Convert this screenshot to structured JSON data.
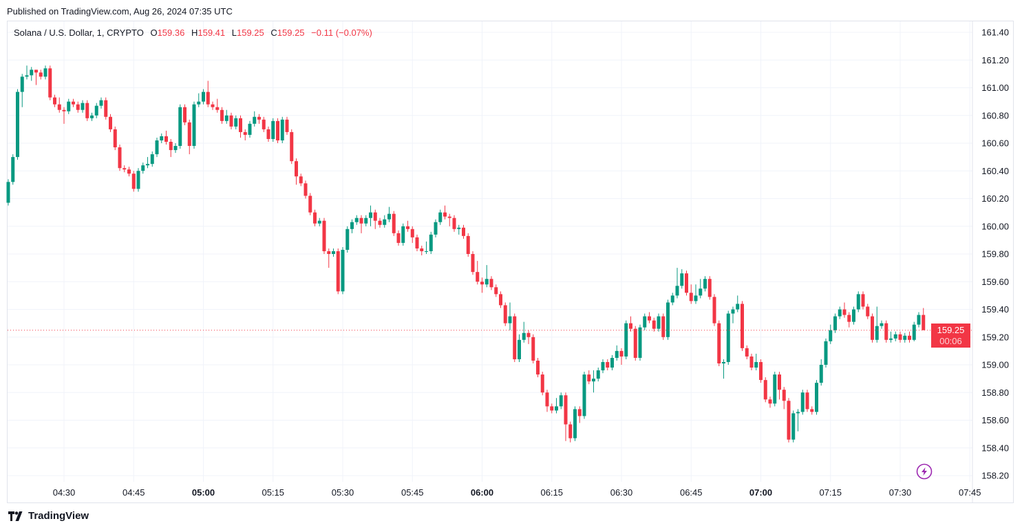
{
  "header": {
    "published": "Published on TradingView.com, Aug 26, 2024 07:35 UTC"
  },
  "legend": {
    "symbol": "Solana / U.S. Dollar, 1, CRYPTO",
    "o_label": "O",
    "o": "159.36",
    "h_label": "H",
    "h": "159.41",
    "l_label": "L",
    "l": "159.25",
    "c_label": "C",
    "c": "159.25",
    "change": "−0.11 (−0.07%)"
  },
  "last_price": {
    "value": "159.25",
    "countdown": "00:06"
  },
  "footer": {
    "brand": "TradingView"
  },
  "icons": {
    "footer_logo": "tradingview-logo-icon",
    "flash": "lightning-icon"
  },
  "colors": {
    "up": "#089981",
    "down": "#f23645",
    "grid": "#f0f3fa",
    "flash": "#9c27b0"
  },
  "chart_data": {
    "type": "candlestick",
    "interval_minutes": 1,
    "x_start": "04:18",
    "x_ticks": [
      {
        "label": "04:30",
        "bold": false
      },
      {
        "label": "04:45",
        "bold": false
      },
      {
        "label": "05:00",
        "bold": true
      },
      {
        "label": "05:15",
        "bold": false
      },
      {
        "label": "05:30",
        "bold": false
      },
      {
        "label": "05:45",
        "bold": false
      },
      {
        "label": "06:00",
        "bold": true
      },
      {
        "label": "06:15",
        "bold": false
      },
      {
        "label": "06:30",
        "bold": false
      },
      {
        "label": "06:45",
        "bold": false
      },
      {
        "label": "07:00",
        "bold": true
      },
      {
        "label": "07:15",
        "bold": false
      },
      {
        "label": "07:30",
        "bold": false
      },
      {
        "label": "07:45",
        "bold": false
      }
    ],
    "y_ticks": [
      "161.40",
      "161.20",
      "161.00",
      "160.80",
      "160.60",
      "160.40",
      "160.20",
      "160.00",
      "159.80",
      "159.60",
      "159.40",
      "159.20",
      "159.00",
      "158.80",
      "158.60",
      "158.40",
      "158.20"
    ],
    "ylim": [
      158.15,
      161.47
    ],
    "grid": true,
    "ohlc": [
      [
        160.17,
        160.34,
        160.15,
        160.32
      ],
      [
        160.32,
        160.52,
        160.3,
        160.5
      ],
      [
        160.5,
        160.99,
        160.48,
        160.97
      ],
      [
        160.97,
        161.1,
        160.86,
        161.08
      ],
      [
        161.08,
        161.16,
        161.06,
        161.09
      ],
      [
        161.09,
        161.15,
        161.05,
        161.13
      ],
      [
        161.13,
        161.13,
        161.02,
        161.11
      ],
      [
        161.11,
        161.13,
        161.06,
        161.08
      ],
      [
        161.08,
        161.16,
        161.06,
        161.14
      ],
      [
        161.14,
        161.16,
        160.91,
        160.93
      ],
      [
        160.93,
        160.95,
        160.86,
        160.88
      ],
      [
        160.88,
        160.93,
        160.82,
        160.84
      ],
      [
        160.84,
        160.86,
        160.74,
        160.83
      ],
      [
        160.83,
        160.92,
        160.81,
        160.9
      ],
      [
        160.9,
        160.92,
        160.86,
        160.88
      ],
      [
        160.88,
        160.9,
        160.82,
        160.84
      ],
      [
        160.84,
        160.91,
        160.82,
        160.89
      ],
      [
        160.89,
        160.91,
        160.76,
        160.78
      ],
      [
        160.78,
        160.82,
        160.76,
        160.8
      ],
      [
        160.8,
        160.89,
        160.78,
        160.87
      ],
      [
        160.87,
        160.93,
        160.85,
        160.91
      ],
      [
        160.91,
        160.93,
        160.77,
        160.79
      ],
      [
        160.79,
        160.81,
        160.68,
        160.7
      ],
      [
        160.7,
        160.72,
        160.55,
        160.57
      ],
      [
        160.57,
        160.59,
        160.4,
        160.42
      ],
      [
        160.42,
        160.44,
        160.39,
        160.41
      ],
      [
        160.41,
        160.43,
        160.36,
        160.38
      ],
      [
        160.38,
        160.4,
        160.25,
        160.27
      ],
      [
        160.27,
        160.42,
        160.25,
        160.4
      ],
      [
        160.4,
        160.46,
        160.38,
        160.44
      ],
      [
        160.44,
        160.5,
        160.42,
        160.45
      ],
      [
        160.45,
        160.54,
        160.43,
        160.52
      ],
      [
        160.52,
        160.64,
        160.5,
        160.62
      ],
      [
        160.62,
        160.67,
        160.6,
        160.65
      ],
      [
        160.65,
        160.69,
        160.59,
        160.61
      ],
      [
        160.61,
        160.63,
        160.5,
        160.55
      ],
      [
        160.55,
        160.6,
        160.53,
        160.58
      ],
      [
        160.58,
        160.88,
        160.56,
        160.86
      ],
      [
        160.86,
        160.88,
        160.73,
        160.75
      ],
      [
        160.75,
        160.77,
        160.52,
        160.58
      ],
      [
        160.58,
        160.9,
        160.56,
        160.88
      ],
      [
        160.88,
        160.96,
        160.86,
        160.9
      ],
      [
        160.9,
        160.99,
        160.88,
        160.97
      ],
      [
        160.97,
        161.05,
        160.86,
        160.88
      ],
      [
        160.88,
        160.9,
        160.84,
        160.86
      ],
      [
        160.86,
        160.92,
        160.82,
        160.84
      ],
      [
        160.84,
        160.86,
        160.74,
        160.76
      ],
      [
        160.76,
        160.84,
        160.74,
        160.8
      ],
      [
        160.8,
        160.82,
        160.7,
        160.72
      ],
      [
        160.72,
        160.8,
        160.7,
        160.78
      ],
      [
        160.78,
        160.8,
        160.64,
        160.68
      ],
      [
        160.68,
        160.7,
        160.62,
        160.66
      ],
      [
        160.66,
        160.76,
        160.64,
        160.74
      ],
      [
        160.74,
        160.83,
        160.72,
        160.79
      ],
      [
        160.79,
        160.81,
        160.74,
        160.77
      ],
      [
        160.77,
        160.79,
        160.68,
        160.7
      ],
      [
        160.7,
        160.72,
        160.61,
        160.63
      ],
      [
        160.63,
        160.78,
        160.61,
        160.76
      ],
      [
        160.76,
        160.78,
        160.6,
        160.62
      ],
      [
        160.62,
        160.79,
        160.6,
        160.77
      ],
      [
        160.77,
        160.79,
        160.66,
        160.68
      ],
      [
        160.68,
        160.7,
        160.45,
        160.47
      ],
      [
        160.47,
        160.49,
        160.3,
        160.36
      ],
      [
        160.36,
        160.38,
        160.29,
        160.31
      ],
      [
        160.31,
        160.33,
        160.2,
        160.22
      ],
      [
        160.22,
        160.24,
        160.08,
        160.1
      ],
      [
        160.1,
        160.12,
        160.0,
        160.02
      ],
      [
        160.02,
        160.06,
        160.0,
        160.04
      ],
      [
        160.04,
        160.06,
        159.8,
        159.82
      ],
      [
        159.82,
        159.84,
        159.7,
        159.8
      ],
      [
        159.8,
        159.84,
        159.78,
        159.82
      ],
      [
        159.82,
        159.84,
        159.51,
        159.53
      ],
      [
        159.53,
        159.85,
        159.51,
        159.83
      ],
      [
        159.83,
        160.0,
        159.81,
        159.98
      ],
      [
        159.98,
        160.05,
        159.95,
        160.03
      ],
      [
        160.03,
        160.08,
        160.01,
        160.06
      ],
      [
        160.06,
        160.08,
        159.95,
        160.02
      ],
      [
        160.02,
        160.08,
        160.0,
        160.06
      ],
      [
        160.06,
        160.15,
        160.0,
        160.1
      ],
      [
        160.1,
        160.12,
        159.98,
        160.04
      ],
      [
        160.04,
        160.06,
        159.99,
        160.01
      ],
      [
        160.01,
        160.08,
        159.99,
        160.05
      ],
      [
        160.05,
        160.14,
        160.03,
        160.09
      ],
      [
        160.09,
        160.11,
        159.93,
        159.95
      ],
      [
        159.95,
        159.97,
        159.86,
        159.88
      ],
      [
        159.88,
        160.02,
        159.86,
        160.0
      ],
      [
        160.0,
        160.04,
        159.96,
        159.98
      ],
      [
        159.98,
        160.0,
        159.88,
        159.92
      ],
      [
        159.92,
        159.94,
        159.82,
        159.84
      ],
      [
        159.84,
        159.86,
        159.79,
        159.82
      ],
      [
        159.82,
        159.89,
        159.8,
        159.82
      ],
      [
        159.82,
        159.96,
        159.8,
        159.94
      ],
      [
        159.94,
        160.05,
        159.92,
        160.03
      ],
      [
        160.03,
        160.12,
        160.01,
        160.1
      ],
      [
        160.1,
        160.15,
        160.05,
        160.07
      ],
      [
        160.07,
        160.09,
        160.0,
        160.06
      ],
      [
        160.06,
        160.08,
        159.96,
        159.98
      ],
      [
        159.98,
        160.01,
        159.94,
        159.99
      ],
      [
        159.99,
        160.01,
        159.91,
        159.93
      ],
      [
        159.93,
        159.95,
        159.78,
        159.8
      ],
      [
        159.8,
        159.82,
        159.65,
        159.67
      ],
      [
        159.67,
        159.75,
        159.58,
        159.6
      ],
      [
        159.6,
        159.63,
        159.52,
        159.58
      ],
      [
        159.58,
        159.72,
        159.56,
        159.62
      ],
      [
        159.62,
        159.64,
        159.54,
        159.56
      ],
      [
        159.56,
        159.58,
        159.49,
        159.51
      ],
      [
        159.51,
        159.53,
        159.41,
        159.43
      ],
      [
        159.43,
        159.45,
        159.28,
        159.3
      ],
      [
        159.3,
        159.45,
        159.25,
        159.35
      ],
      [
        159.35,
        159.37,
        159.02,
        159.04
      ],
      [
        159.04,
        159.22,
        159.02,
        159.18
      ],
      [
        159.18,
        159.31,
        159.16,
        159.23
      ],
      [
        159.23,
        159.25,
        159.15,
        159.2
      ],
      [
        159.2,
        159.22,
        159.01,
        159.03
      ],
      [
        159.03,
        159.05,
        158.91,
        158.93
      ],
      [
        158.93,
        158.95,
        158.78,
        158.8
      ],
      [
        158.8,
        158.82,
        158.66,
        158.7
      ],
      [
        158.7,
        158.72,
        158.65,
        158.67
      ],
      [
        158.67,
        158.76,
        158.65,
        158.7
      ],
      [
        158.7,
        158.8,
        158.68,
        158.78
      ],
      [
        158.78,
        158.8,
        158.45,
        158.57
      ],
      [
        158.57,
        158.59,
        158.44,
        158.47
      ],
      [
        158.47,
        158.7,
        158.45,
        158.68
      ],
      [
        158.68,
        158.7,
        158.58,
        158.63
      ],
      [
        158.63,
        158.95,
        158.61,
        158.93
      ],
      [
        158.93,
        158.96,
        158.86,
        158.88
      ],
      [
        158.88,
        158.96,
        158.8,
        158.9
      ],
      [
        158.9,
        158.98,
        158.88,
        158.96
      ],
      [
        158.96,
        159.04,
        158.94,
        159.02
      ],
      [
        159.02,
        159.04,
        158.96,
        158.98
      ],
      [
        158.98,
        159.07,
        158.96,
        159.05
      ],
      [
        159.05,
        159.14,
        159.03,
        159.1
      ],
      [
        159.1,
        159.12,
        159.0,
        159.06
      ],
      [
        159.06,
        159.32,
        159.04,
        159.3
      ],
      [
        159.3,
        159.35,
        159.24,
        159.26
      ],
      [
        159.26,
        159.28,
        159.03,
        159.05
      ],
      [
        159.05,
        159.29,
        159.03,
        159.27
      ],
      [
        159.27,
        159.37,
        159.25,
        159.35
      ],
      [
        159.35,
        159.38,
        159.3,
        159.32
      ],
      [
        159.32,
        159.34,
        159.24,
        159.26
      ],
      [
        159.26,
        159.37,
        159.24,
        159.35
      ],
      [
        159.35,
        159.37,
        159.18,
        159.2
      ],
      [
        159.2,
        159.47,
        159.18,
        159.45
      ],
      [
        159.45,
        159.52,
        159.43,
        159.5
      ],
      [
        159.5,
        159.7,
        159.48,
        159.57
      ],
      [
        159.57,
        159.69,
        159.55,
        159.66
      ],
      [
        159.66,
        159.68,
        159.5,
        159.52
      ],
      [
        159.52,
        159.58,
        159.44,
        159.46
      ],
      [
        159.46,
        159.58,
        159.44,
        159.5
      ],
      [
        159.5,
        159.62,
        159.48,
        159.55
      ],
      [
        159.55,
        159.64,
        159.53,
        159.62
      ],
      [
        159.62,
        159.64,
        159.47,
        159.49
      ],
      [
        159.49,
        159.51,
        159.28,
        159.3
      ],
      [
        159.3,
        159.32,
        158.99,
        159.01
      ],
      [
        159.01,
        159.04,
        158.9,
        159.02
      ],
      [
        159.02,
        159.39,
        159.0,
        159.37
      ],
      [
        159.37,
        159.42,
        159.3,
        159.4
      ],
      [
        159.4,
        159.5,
        159.38,
        159.44
      ],
      [
        159.44,
        159.46,
        159.1,
        159.12
      ],
      [
        159.12,
        159.14,
        159.04,
        159.06
      ],
      [
        159.06,
        159.08,
        158.96,
        158.98
      ],
      [
        158.98,
        159.08,
        158.96,
        159.02
      ],
      [
        159.02,
        159.04,
        158.87,
        158.89
      ],
      [
        158.89,
        158.91,
        158.73,
        158.75
      ],
      [
        158.75,
        158.77,
        158.69,
        158.72
      ],
      [
        158.72,
        158.95,
        158.7,
        158.93
      ],
      [
        158.93,
        158.95,
        158.75,
        158.82
      ],
      [
        158.82,
        158.84,
        158.68,
        158.74
      ],
      [
        158.74,
        158.76,
        158.44,
        158.46
      ],
      [
        158.46,
        158.67,
        158.44,
        158.65
      ],
      [
        158.65,
        158.68,
        158.52,
        158.66
      ],
      [
        158.66,
        158.82,
        158.64,
        158.8
      ],
      [
        158.8,
        158.82,
        158.66,
        158.68
      ],
      [
        158.68,
        158.7,
        158.64,
        158.66
      ],
      [
        158.66,
        158.89,
        158.64,
        158.87
      ],
      [
        158.87,
        159.04,
        158.85,
        159.0
      ],
      [
        159.0,
        159.19,
        158.98,
        159.17
      ],
      [
        159.17,
        159.29,
        159.15,
        159.25
      ],
      [
        159.25,
        159.37,
        159.23,
        159.35
      ],
      [
        159.35,
        159.42,
        159.33,
        159.4
      ],
      [
        159.4,
        159.45,
        159.34,
        159.36
      ],
      [
        159.36,
        159.38,
        159.27,
        159.31
      ],
      [
        159.31,
        159.42,
        159.29,
        159.4
      ],
      [
        159.4,
        159.53,
        159.38,
        159.51
      ],
      [
        159.51,
        159.53,
        159.4,
        159.42
      ],
      [
        159.42,
        159.44,
        159.33,
        159.35
      ],
      [
        159.35,
        159.37,
        159.16,
        159.18
      ],
      [
        159.18,
        159.42,
        159.16,
        159.28
      ],
      [
        159.28,
        159.32,
        159.26,
        159.3
      ],
      [
        159.3,
        159.32,
        159.16,
        159.18
      ],
      [
        159.18,
        159.24,
        159.16,
        159.19
      ],
      [
        159.19,
        159.24,
        159.17,
        159.22
      ],
      [
        159.22,
        159.24,
        159.16,
        159.18
      ],
      [
        159.18,
        159.23,
        159.16,
        159.21
      ],
      [
        159.21,
        159.24,
        159.16,
        159.18
      ],
      [
        159.18,
        159.31,
        159.17,
        159.29
      ],
      [
        159.29,
        159.38,
        159.27,
        159.36
      ],
      [
        159.36,
        159.41,
        159.25,
        159.25
      ]
    ]
  }
}
